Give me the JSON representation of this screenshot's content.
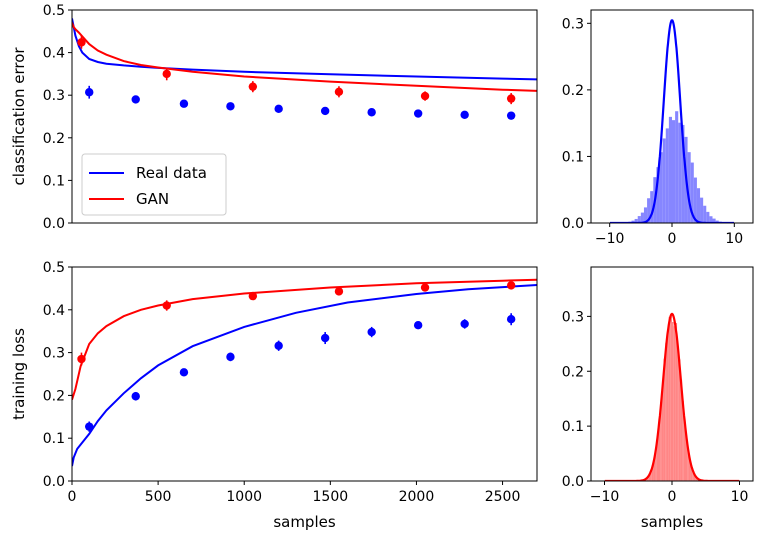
{
  "colors": {
    "real": "#0000ff",
    "gan": "#ff0000",
    "real_hist": "#8080ff",
    "gan_hist": "#ff8080"
  },
  "chart_data": [
    {
      "id": "top-left",
      "type": "line",
      "title": "",
      "xlabel": "",
      "ylabel": "classification error",
      "xlim": [
        0,
        2700
      ],
      "ylim": [
        0,
        0.5
      ],
      "yticks": [
        "0.0",
        "0.1",
        "0.2",
        "0.3",
        "0.4",
        "0.5"
      ],
      "grid": false,
      "legend": {
        "placement": "lower-left",
        "entries": [
          {
            "label": "Real data",
            "color": "real"
          },
          {
            "label": "GAN",
            "color": "gan"
          }
        ]
      },
      "series": [
        {
          "name": "Real data",
          "kind": "curve",
          "color": "real",
          "x": [
            0,
            10,
            20,
            40,
            60,
            100,
            150,
            200,
            300,
            400,
            500,
            700,
            1000,
            1500,
            2000,
            2500,
            2700
          ],
          "y": [
            0.48,
            0.46,
            0.44,
            0.415,
            0.4,
            0.385,
            0.378,
            0.374,
            0.37,
            0.367,
            0.364,
            0.36,
            0.355,
            0.349,
            0.344,
            0.339,
            0.337
          ]
        },
        {
          "name": "GAN",
          "kind": "curve",
          "color": "gan",
          "x": [
            0,
            10,
            20,
            40,
            60,
            100,
            150,
            200,
            300,
            400,
            500,
            700,
            1000,
            1500,
            2000,
            2500,
            2700
          ],
          "y": [
            0.47,
            0.46,
            0.455,
            0.447,
            0.438,
            0.42,
            0.405,
            0.395,
            0.38,
            0.371,
            0.365,
            0.355,
            0.344,
            0.332,
            0.322,
            0.313,
            0.31
          ]
        },
        {
          "name": "Real data",
          "kind": "points",
          "color": "real",
          "x": [
            100,
            370,
            650,
            920,
            1200,
            1470,
            1740,
            2010,
            2280,
            2550
          ],
          "y": [
            0.307,
            0.29,
            0.28,
            0.274,
            0.268,
            0.263,
            0.26,
            0.257,
            0.254,
            0.252
          ],
          "err": [
            0.015,
            0.004,
            0.004,
            0.004,
            0.004,
            0.004,
            0.004,
            0.004,
            0.004,
            0.004
          ]
        },
        {
          "name": "GAN",
          "kind": "points",
          "color": "gan",
          "x": [
            55,
            550,
            1050,
            1550,
            2050,
            2550
          ],
          "y": [
            0.424,
            0.35,
            0.32,
            0.308,
            0.298,
            0.292
          ],
          "err": [
            0.015,
            0.015,
            0.013,
            0.013,
            0.011,
            0.013
          ]
        }
      ]
    },
    {
      "id": "top-right",
      "type": "histogram",
      "xlim": [
        -13,
        13
      ],
      "ylim": [
        0,
        0.32
      ],
      "xticks": [
        -10,
        0,
        10
      ],
      "xtick_labels": [
        "−10",
        "0",
        "10"
      ],
      "yticks": [
        "0.0",
        "0.1",
        "0.2",
        "0.3"
      ],
      "xlabel": "",
      "hist": {
        "color": "real_hist",
        "center": 0.5,
        "sigma": 2.45,
        "bin_width": 0.5
      },
      "curve": {
        "color": "real",
        "center": 0,
        "sigma": 1.31
      }
    },
    {
      "id": "bottom-left",
      "type": "line",
      "xlabel": "samples",
      "ylabel": "training loss",
      "xlim": [
        0,
        2700
      ],
      "ylim": [
        0,
        0.5
      ],
      "xticks": [
        0,
        500,
        1000,
        1500,
        2000,
        2500
      ],
      "yticks": [
        "0.0",
        "0.1",
        "0.2",
        "0.3",
        "0.4",
        "0.5"
      ],
      "grid": false,
      "series": [
        {
          "name": "Real data",
          "kind": "curve",
          "color": "real",
          "x": [
            0,
            10,
            30,
            60,
            100,
            150,
            200,
            300,
            400,
            500,
            700,
            1000,
            1300,
            1600,
            2000,
            2300,
            2700
          ],
          "y": [
            0.035,
            0.055,
            0.075,
            0.09,
            0.11,
            0.14,
            0.165,
            0.205,
            0.24,
            0.27,
            0.315,
            0.36,
            0.393,
            0.417,
            0.437,
            0.448,
            0.458
          ]
        },
        {
          "name": "GAN",
          "kind": "curve",
          "color": "gan",
          "x": [
            0,
            20,
            50,
            100,
            150,
            200,
            300,
            400,
            500,
            700,
            1000,
            1500,
            2000,
            2500,
            2700
          ],
          "y": [
            0.19,
            0.215,
            0.268,
            0.32,
            0.345,
            0.362,
            0.385,
            0.4,
            0.41,
            0.425,
            0.438,
            0.452,
            0.462,
            0.468,
            0.47
          ]
        },
        {
          "name": "Real data",
          "kind": "points",
          "color": "real",
          "x": [
            100,
            370,
            650,
            920,
            1200,
            1470,
            1740,
            2010,
            2280,
            2550
          ],
          "y": [
            0.127,
            0.198,
            0.254,
            0.29,
            0.316,
            0.334,
            0.348,
            0.364,
            0.367,
            0.378
          ],
          "err": [
            0.012,
            0.01,
            0.006,
            0.01,
            0.012,
            0.014,
            0.012,
            0.006,
            0.011,
            0.014
          ]
        },
        {
          "name": "GAN",
          "kind": "points",
          "color": "gan",
          "x": [
            55,
            550,
            1050,
            1550,
            2050,
            2550
          ],
          "y": [
            0.285,
            0.41,
            0.432,
            0.443,
            0.452,
            0.457
          ],
          "err": [
            0.015,
            0.012,
            0.006,
            0.006,
            0.006,
            0.006
          ]
        }
      ]
    },
    {
      "id": "bottom-right",
      "type": "histogram",
      "xlim": [
        -12,
        12
      ],
      "ylim": [
        0,
        0.39
      ],
      "xticks": [
        -10,
        0,
        10
      ],
      "xtick_labels": [
        "−10",
        "0",
        "10"
      ],
      "yticks": [
        "0.0",
        "0.1",
        "0.2",
        "0.3"
      ],
      "xlabel": "samples",
      "hist": {
        "color": "gan_hist",
        "center": 0,
        "sigma": 1.31,
        "bin_width": 0.25
      },
      "curve": {
        "color": "gan",
        "center": 0,
        "sigma": 1.31
      }
    }
  ]
}
